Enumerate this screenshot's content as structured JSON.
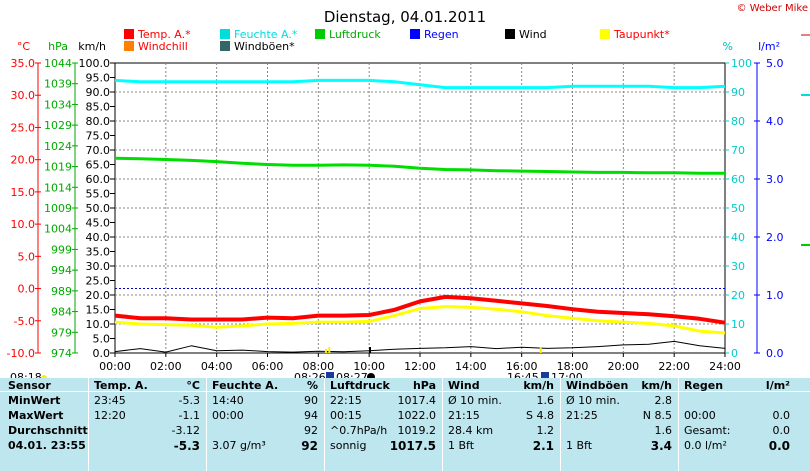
{
  "title": "Dienstag, 04.01.2011",
  "copyright": "© Weber Mike",
  "colors": {
    "temp": "#ff0000",
    "feuchte": "#00ffff",
    "luftdruck": "#00dd00",
    "regen": "#0000ff",
    "wind": "#000000",
    "taupunkt": "#ffff00",
    "windchill": "#ff8000",
    "windboen": "#336666",
    "stats_bg": "#bde6ee"
  },
  "legend": [
    {
      "label": "Temp. A.*",
      "color": "#ff0000",
      "text_color": "#ff0000"
    },
    {
      "label": "Feuchte A.*",
      "color": "#00dddd",
      "text_color": "#00dddd"
    },
    {
      "label": "Luftdruck",
      "color": "#00cc00",
      "text_color": "#00aa00"
    },
    {
      "label": "Regen",
      "color": "#0000ff",
      "text_color": "#0000ff"
    },
    {
      "label": "Wind",
      "color": "#000000",
      "text_color": "#000000"
    },
    {
      "label": "Taupunkt*",
      "color": "#ffff00",
      "text_color": "#ff0000"
    },
    {
      "label": "Windchill",
      "color": "#ff8000",
      "text_color": "#ff0000"
    },
    {
      "label": "Windböen*",
      "color": "#336666",
      "text_color": "#000000"
    }
  ],
  "axis_titles": {
    "celsius": "°C",
    "hpa": "hPa",
    "kmh": "km/h",
    "percent": "%",
    "rain": "l/m²"
  },
  "chart_data": {
    "type": "line",
    "x_ticks": [
      "00:00",
      "02:00",
      "04:00",
      "06:00",
      "08:00",
      "10:00",
      "12:00",
      "14:00",
      "16:00",
      "18:00",
      "20:00",
      "22:00",
      "24:00"
    ],
    "axes": {
      "celsius": {
        "range": [
          -10.0,
          35.0
        ],
        "ticks": [
          "-10.0",
          "-5.0",
          "0.0",
          "5.0",
          "10.0",
          "15.0",
          "20.0",
          "25.0",
          "30.0",
          "35.0"
        ]
      },
      "hpa": {
        "range": [
          974,
          1044
        ],
        "ticks": [
          "974",
          "979",
          "984",
          "989",
          "994",
          "999",
          "1004",
          "1009",
          "1014",
          "1019",
          "1024",
          "1029",
          "1034",
          "1039",
          "1044"
        ]
      },
      "kmh": {
        "range": [
          0,
          100
        ],
        "ticks": [
          "0.0",
          "5.0",
          "10.0",
          "15.0",
          "20.0",
          "25.0",
          "30.0",
          "35.0",
          "40.0",
          "45.0",
          "50.0",
          "55.0",
          "60.0",
          "65.0",
          "70.0",
          "75.0",
          "80.0",
          "85.0",
          "90.0",
          "95.0",
          "100.0"
        ]
      },
      "percent": {
        "range": [
          0,
          100
        ],
        "ticks": [
          "0",
          "10",
          "20",
          "30",
          "40",
          "50",
          "60",
          "70",
          "80",
          "90",
          "100"
        ]
      },
      "rain": {
        "range": [
          0.0,
          5.0
        ],
        "ticks": [
          "0.0",
          "1.0",
          "2.0",
          "3.0",
          "4.0",
          "5.0"
        ]
      }
    },
    "series": [
      {
        "name": "Feuchte A.*",
        "axis": "percent",
        "x": [
          0,
          1,
          2,
          3,
          4,
          5,
          6,
          7,
          8,
          9,
          10,
          11,
          12,
          13,
          14,
          15,
          16,
          17,
          18,
          19,
          20,
          21,
          22,
          23,
          24
        ],
        "y": [
          94,
          93.5,
          93.5,
          93.5,
          93.5,
          93.5,
          93.5,
          93.5,
          94,
          94,
          94,
          93.5,
          92.5,
          91.5,
          91.5,
          91.5,
          91.5,
          91.5,
          92,
          92,
          92,
          92,
          91.5,
          91.5,
          92
        ]
      },
      {
        "name": "Luftdruck",
        "axis": "hpa",
        "x": [
          0,
          1,
          2,
          3,
          4,
          5,
          6,
          7,
          8,
          9,
          10,
          11,
          12,
          13,
          14,
          15,
          16,
          17,
          18,
          19,
          20,
          21,
          22,
          23,
          24
        ],
        "y": [
          1021.0,
          1020.9,
          1020.7,
          1020.5,
          1020.2,
          1019.8,
          1019.5,
          1019.3,
          1019.3,
          1019.4,
          1019.3,
          1019.1,
          1018.6,
          1018.3,
          1018.2,
          1018.0,
          1017.9,
          1017.8,
          1017.7,
          1017.6,
          1017.6,
          1017.5,
          1017.5,
          1017.4,
          1017.4
        ]
      },
      {
        "name": "Temp. A.*",
        "axis": "celsius",
        "x": [
          0,
          1,
          2,
          3,
          4,
          5,
          6,
          7,
          8,
          9,
          10,
          11,
          12,
          13,
          14,
          15,
          16,
          17,
          18,
          19,
          20,
          21,
          22,
          23,
          24
        ],
        "y": [
          -4.2,
          -4.6,
          -4.6,
          -4.8,
          -4.8,
          -4.8,
          -4.5,
          -4.6,
          -4.2,
          -4.2,
          -4.1,
          -3.3,
          -2.0,
          -1.3,
          -1.5,
          -1.9,
          -2.3,
          -2.7,
          -3.2,
          -3.6,
          -3.8,
          -4.0,
          -4.3,
          -4.7,
          -5.3
        ]
      },
      {
        "name": "Taupunkt*",
        "axis": "celsius",
        "x": [
          0,
          1,
          2,
          3,
          4,
          5,
          6,
          7,
          8,
          9,
          10,
          11,
          12,
          13,
          14,
          15,
          16,
          17,
          18,
          19,
          20,
          21,
          22,
          23,
          24
        ],
        "y": [
          -5.2,
          -5.5,
          -5.6,
          -5.7,
          -6.0,
          -5.8,
          -5.5,
          -5.4,
          -5.2,
          -5.2,
          -5.1,
          -4.2,
          -3.1,
          -2.8,
          -2.9,
          -3.2,
          -3.6,
          -4.2,
          -4.6,
          -5.0,
          -5.2,
          -5.4,
          -5.8,
          -6.6,
          -6.9
        ]
      },
      {
        "name": "Wind",
        "axis": "kmh",
        "x": [
          0,
          1,
          2,
          3,
          4,
          5,
          6,
          7,
          8,
          9,
          10,
          11,
          12,
          13,
          14,
          15,
          16,
          17,
          18,
          19,
          20,
          21,
          22,
          23,
          24
        ],
        "y": [
          0.5,
          1.5,
          0.3,
          2.5,
          0.8,
          1.0,
          0.5,
          0.3,
          0.6,
          0.4,
          0.8,
          1.3,
          1.6,
          1.8,
          2.2,
          1.5,
          2.0,
          1.6,
          1.8,
          2.2,
          2.8,
          3.0,
          4.0,
          2.5,
          1.6
        ]
      }
    ],
    "markers": [
      {
        "time": "08:18",
        "icon": "sun-icon"
      },
      {
        "time": "08:26",
        "icon": "moon-rise-icon"
      },
      {
        "time": "08:27",
        "icon": "new-moon-icon"
      },
      {
        "time": "16:45",
        "icon": "sunset-icon"
      },
      {
        "time": "17:00",
        "icon": "moon-set-icon"
      }
    ],
    "grid": true
  },
  "stats": {
    "headers": {
      "sensor": "Sensor",
      "temp": "Temp. A.",
      "temp_unit": "°C",
      "feuchte": "Feuchte A.",
      "feuchte_unit": "%",
      "luftdruck": "Luftdruck",
      "luftdruck_unit": "hPa",
      "wind": "Wind",
      "wind_unit": "km/h",
      "boen": "Windböen",
      "boen_unit": "km/h",
      "regen": "Regen",
      "regen_unit": "l/m²"
    },
    "rows": [
      {
        "label": "MinWert",
        "temp_t": "23:45",
        "temp_v": "-5.3",
        "feuchte_t": "14:40",
        "feuchte_v": "90",
        "druck_t": "22:15",
        "druck_v": "1017.4",
        "wind_t": "Ø 10 min.",
        "wind_v": "1.6",
        "boen_t": "Ø 10 min.",
        "boen_v": "2.8",
        "regen_t": "",
        "regen_v": ""
      },
      {
        "label": "MaxWert",
        "temp_t": "12:20",
        "temp_v": "-1.1",
        "feuchte_t": "00:00",
        "feuchte_v": "94",
        "druck_t": "00:15",
        "druck_v": "1022.0",
        "wind_t": "21:15",
        "wind_v": "S 4.8",
        "boen_t": "21:25",
        "boen_v": "N 8.5",
        "regen_t": "00:00",
        "regen_v": "0.0"
      },
      {
        "label": "Durchschnitt",
        "temp_t": "",
        "temp_v": "-3.12",
        "feuchte_t": "",
        "feuchte_v": "92",
        "druck_t": "^0.7hPa/h",
        "druck_v": "1019.2",
        "wind_t": "28.4 km",
        "wind_v": "1.2",
        "boen_t": "",
        "boen_v": "1.6",
        "regen_t": "Gesamt:",
        "regen_v": "0.0"
      },
      {
        "label": "04.01. 23:55",
        "temp_t": "",
        "temp_v": "-5.3",
        "feuchte_t": "3.07 g/m³",
        "feuchte_v": "92",
        "druck_t": "sonnig",
        "druck_v": "1017.5",
        "wind_t": "1 Bft",
        "wind_v": "2.1",
        "boen_t": "1 Bft",
        "boen_v": "3.4",
        "regen_t": "0.0 l/m²",
        "regen_v": "0.0"
      }
    ]
  }
}
